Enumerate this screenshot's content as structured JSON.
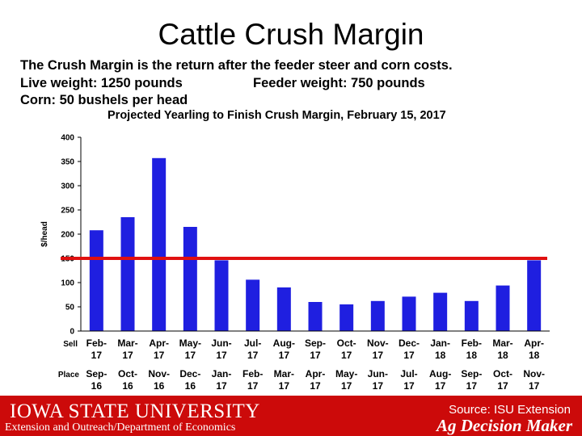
{
  "slide": {
    "title": "Cattle Crush Margin",
    "line1": "The Crush Margin is the return after the feeder steer and corn costs.",
    "live_weight": "Live weight:  1250 pounds",
    "feeder_weight": "Feeder weight:  750 pounds",
    "corn": "Corn:  50 bushels per head"
  },
  "chart_data": {
    "type": "bar",
    "title": "Projected Yearling to Finish Crush Margin, February 15, 2017",
    "ylabel": "$/head",
    "ylim": [
      0,
      400
    ],
    "yticks": [
      0,
      50,
      100,
      150,
      200,
      250,
      300,
      350,
      400
    ],
    "sell_row_label": "Sell",
    "place_row_label": "Place",
    "categories_sell": [
      "Feb-17",
      "Mar-17",
      "Apr-17",
      "May-17",
      "Jun-17",
      "Jul-17",
      "Aug-17",
      "Sep-17",
      "Oct-17",
      "Nov-17",
      "Dec-17",
      "Jan-18",
      "Feb-18",
      "Mar-18",
      "Apr-18"
    ],
    "categories_place": [
      "Sep-16",
      "Oct-16",
      "Nov-16",
      "Dec-16",
      "Jan-17",
      "Feb-17",
      "Mar-17",
      "Apr-17",
      "May-17",
      "Jun-17",
      "Jul-17",
      "Aug-17",
      "Sep-17",
      "Oct-17",
      "Nov-17"
    ],
    "values": [
      208,
      235,
      357,
      215,
      146,
      106,
      90,
      60,
      55,
      62,
      71,
      79,
      62,
      94,
      146
    ],
    "reference_line": 150,
    "grid": false,
    "colors": {
      "bar": "#1f1fe0",
      "reference_line": "#e01010"
    }
  },
  "footer": {
    "university": "IOWA STATE UNIVERSITY",
    "department": "Extension and Outreach/Department of Economics",
    "source": "Source: ISU Extension",
    "brand": "Ag Decision Maker",
    "color": "#cc0a0a"
  }
}
